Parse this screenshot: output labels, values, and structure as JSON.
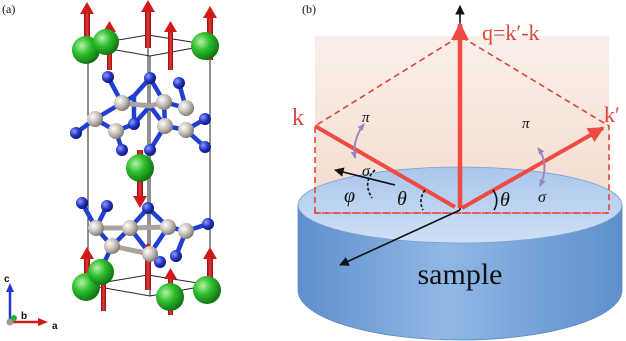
{
  "panel_a": {
    "label": "(a)",
    "axes": {
      "c": "c",
      "b": "b",
      "a": "a"
    },
    "colors": {
      "spin_atom": "#22b52a",
      "blue_atom": "#2d3ec8",
      "gray_atom": "#bdb5ae",
      "spin_arrow": "#d11a1a",
      "bond": "#1f3fd0"
    }
  },
  "panel_b": {
    "label": "(b)",
    "q_label": "q=k′-k",
    "k_label": "k",
    "k_prime_label": "k′",
    "pi_left": "π",
    "sigma_left": "σ",
    "pi_right": "π",
    "sigma_right": "σ",
    "phi_label": "φ",
    "theta_left": "θ",
    "theta_right": "θ",
    "sample_label": "sample",
    "colors": {
      "beam": "#ef4b43",
      "sample_top": "#b7d0ee",
      "sample_side": "#6e9fd6",
      "plane": "#f5e3d8",
      "polarization": "#9a86bd"
    }
  }
}
